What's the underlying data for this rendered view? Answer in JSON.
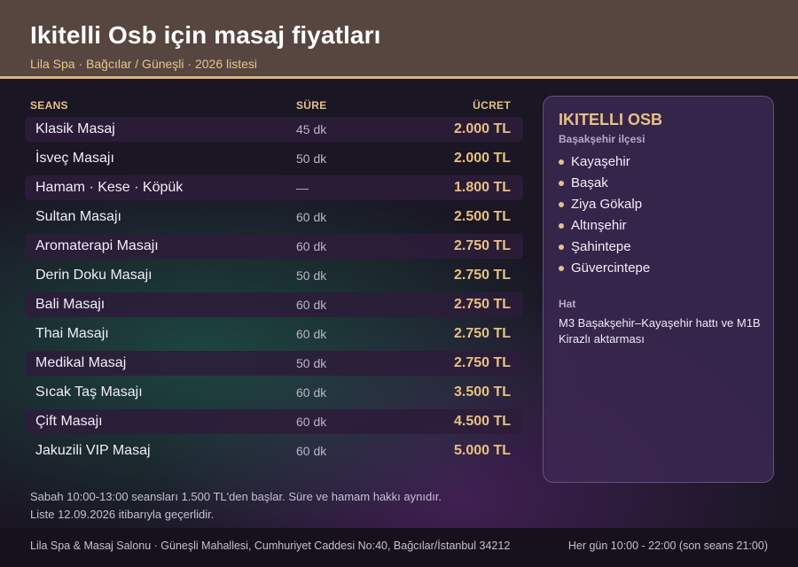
{
  "header": {
    "title": "Ikitelli Osb için masaj fiyatları",
    "subtitle": "Lila Spa · Bağcılar / Güneşli · 2026 listesi"
  },
  "table": {
    "columns": {
      "name": "SEANS",
      "duration": "SÜRE",
      "price": "ÜCRET"
    },
    "rows": [
      {
        "name": "Klasik Masaj",
        "duration": "45 dk",
        "price": "2.000 TL"
      },
      {
        "name": "İsveç Masajı",
        "duration": "50 dk",
        "price": "2.000 TL"
      },
      {
        "name": "Hamam · Kese · Köpük",
        "duration": "—",
        "price": "1.800 TL"
      },
      {
        "name": "Sultan Masajı",
        "duration": "60 dk",
        "price": "2.500 TL"
      },
      {
        "name": "Aromaterapi Masajı",
        "duration": "60 dk",
        "price": "2.750 TL"
      },
      {
        "name": "Derin Doku Masajı",
        "duration": "50 dk",
        "price": "2.750 TL"
      },
      {
        "name": "Bali Masajı",
        "duration": "60 dk",
        "price": "2.750 TL"
      },
      {
        "name": "Thai Masajı",
        "duration": "60 dk",
        "price": "2.750 TL"
      },
      {
        "name": "Medikal Masaj",
        "duration": "50 dk",
        "price": "2.750 TL"
      },
      {
        "name": "Sıcak Taş Masajı",
        "duration": "60 dk",
        "price": "3.500 TL"
      },
      {
        "name": "Çift Masajı",
        "duration": "60 dk",
        "price": "4.500 TL"
      },
      {
        "name": "Jakuzili VIP Masaj",
        "duration": "60 dk",
        "price": "5.000 TL"
      }
    ]
  },
  "panel": {
    "title": "IKITELLI OSB",
    "district": "Başakşehir ilçesi",
    "neighborhoods": [
      "Kayaşehir",
      "Başak",
      "Ziya Gökalp",
      "Altınşehir",
      "Şahintepe",
      "Güvercintepe"
    ],
    "line_title": "Hat",
    "line_text": "M3 Başakşehir–Kayaşehir hattı ve M1B Kirazlı aktarması"
  },
  "notes": {
    "line1": "Sabah 10:00-13:00 seansları 1.500 TL'den başlar. Süre ve hamam hakkı aynıdır.",
    "line2": "Liste 12.09.2026 itibarıyla geçerlidir."
  },
  "footer": {
    "address": "Lila Spa & Masaj Salonu · Güneşli Mahallesi, Cumhuriyet Caddesi No:40, Bağcılar/İstanbul 34212",
    "hours": "Her gün 10:00 - 22:00 (son seans 21:00)"
  },
  "colors": {
    "accent": "#e8c07f",
    "header_bg": "#56463f",
    "panel_bg": "#3c2852"
  }
}
